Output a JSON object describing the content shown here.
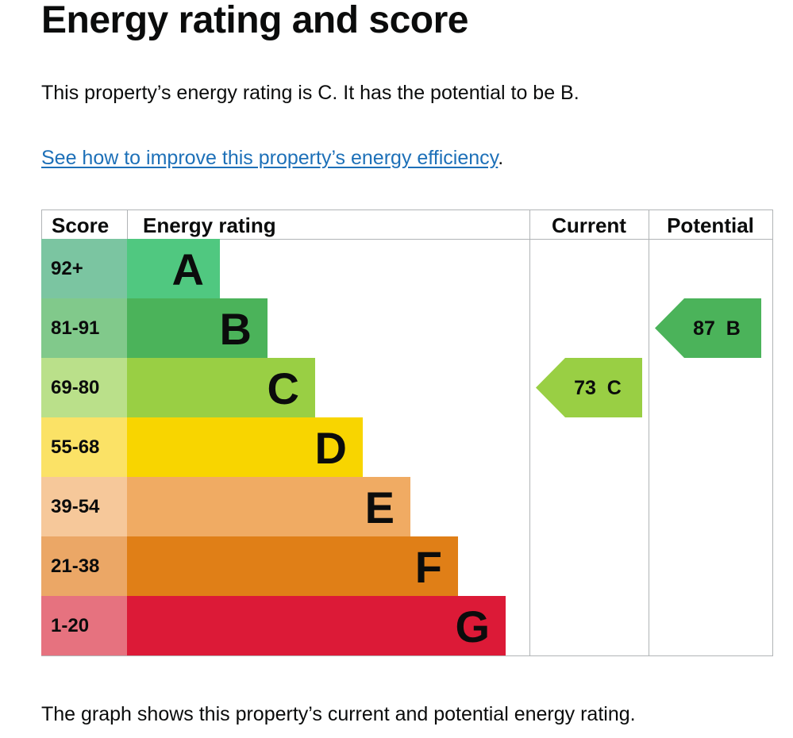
{
  "title": "Energy rating and score",
  "summary": "This property’s energy rating is C. It has the potential to be B.",
  "link": {
    "text": "See how to improve this property’s energy efficiency",
    "suffix": "."
  },
  "caption": "The graph shows this property’s current and potential energy rating.",
  "chart_data": {
    "type": "bar",
    "headers": {
      "score": "Score",
      "rating": "Energy rating",
      "current": "Current",
      "potential": "Potential"
    },
    "bands": [
      {
        "score": "92+",
        "letter": "A",
        "color": "#50c880",
        "score_color": "#7bc5a1"
      },
      {
        "score": "81-91",
        "letter": "B",
        "color": "#4bb35a",
        "score_color": "#81c98b"
      },
      {
        "score": "69-80",
        "letter": "C",
        "color": "#99cf44",
        "score_color": "#bae08a"
      },
      {
        "score": "55-68",
        "letter": "D",
        "color": "#f8d500",
        "score_color": "#fbe266"
      },
      {
        "score": "39-54",
        "letter": "E",
        "color": "#f0ab63",
        "score_color": "#f6c89a"
      },
      {
        "score": "21-38",
        "letter": "F",
        "color": "#e07f17",
        "score_color": "#eba766"
      },
      {
        "score": "1-20",
        "letter": "G",
        "color": "#dc1a37",
        "score_color": "#e6727f"
      }
    ],
    "current": {
      "value": 73,
      "letter": "C",
      "label": "73  C"
    },
    "potential": {
      "value": 87,
      "letter": "B",
      "label": "87  B"
    }
  }
}
